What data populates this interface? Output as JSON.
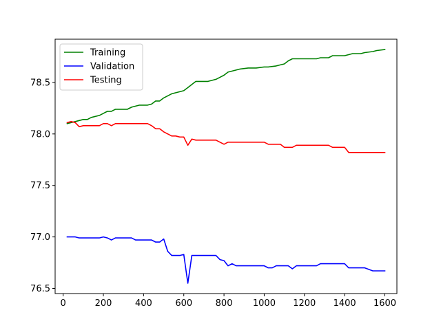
{
  "chart_data": {
    "type": "line",
    "title": "",
    "xlabel": "",
    "ylabel": "",
    "xlim": [
      -40,
      1660
    ],
    "ylim": [
      76.45,
      78.92
    ],
    "xticks": [
      0,
      200,
      400,
      600,
      800,
      1000,
      1200,
      1400,
      1600
    ],
    "yticks": [
      76.5,
      77.0,
      77.5,
      78.0,
      78.5
    ],
    "ytick_labels": [
      "76.5",
      "77.0",
      "77.5",
      "78.0",
      "78.5"
    ],
    "grid": false,
    "legend": {
      "placement": "top-left",
      "entries": [
        "Training",
        "Validation",
        "Testing"
      ]
    },
    "series": [
      {
        "name": "Training",
        "color": "#008000",
        "points": [
          [
            20,
            78.1
          ],
          [
            60,
            78.12
          ],
          [
            80,
            78.13
          ],
          [
            100,
            78.14
          ],
          [
            120,
            78.14
          ],
          [
            140,
            78.16
          ],
          [
            180,
            78.18
          ],
          [
            200,
            78.2
          ],
          [
            220,
            78.22
          ],
          [
            240,
            78.22
          ],
          [
            260,
            78.24
          ],
          [
            320,
            78.24
          ],
          [
            340,
            78.26
          ],
          [
            360,
            78.27
          ],
          [
            380,
            78.28
          ],
          [
            420,
            78.28
          ],
          [
            440,
            78.29
          ],
          [
            460,
            78.32
          ],
          [
            480,
            78.32
          ],
          [
            500,
            78.35
          ],
          [
            520,
            78.37
          ],
          [
            540,
            78.39
          ],
          [
            560,
            78.4
          ],
          [
            580,
            78.41
          ],
          [
            600,
            78.42
          ],
          [
            620,
            78.45
          ],
          [
            640,
            78.48
          ],
          [
            660,
            78.51
          ],
          [
            700,
            78.51
          ],
          [
            720,
            78.51
          ],
          [
            740,
            78.52
          ],
          [
            760,
            78.53
          ],
          [
            780,
            78.55
          ],
          [
            800,
            78.57
          ],
          [
            820,
            78.6
          ],
          [
            840,
            78.61
          ],
          [
            860,
            78.62
          ],
          [
            880,
            78.63
          ],
          [
            920,
            78.64
          ],
          [
            960,
            78.64
          ],
          [
            1000,
            78.65
          ],
          [
            1020,
            78.65
          ],
          [
            1060,
            78.66
          ],
          [
            1080,
            78.67
          ],
          [
            1100,
            78.68
          ],
          [
            1120,
            78.71
          ],
          [
            1140,
            78.73
          ],
          [
            1160,
            78.73
          ],
          [
            1260,
            78.73
          ],
          [
            1280,
            78.74
          ],
          [
            1320,
            78.74
          ],
          [
            1340,
            78.76
          ],
          [
            1400,
            78.76
          ],
          [
            1420,
            78.77
          ],
          [
            1440,
            78.78
          ],
          [
            1480,
            78.78
          ],
          [
            1500,
            78.79
          ],
          [
            1540,
            78.8
          ],
          [
            1560,
            78.81
          ],
          [
            1600,
            78.82
          ]
        ]
      },
      {
        "name": "Validation",
        "color": "#0000ff",
        "points": [
          [
            20,
            77.0
          ],
          [
            60,
            77.0
          ],
          [
            80,
            76.99
          ],
          [
            180,
            76.99
          ],
          [
            200,
            77.0
          ],
          [
            220,
            76.99
          ],
          [
            240,
            76.97
          ],
          [
            260,
            76.99
          ],
          [
            340,
            76.99
          ],
          [
            360,
            76.97
          ],
          [
            440,
            76.97
          ],
          [
            460,
            76.95
          ],
          [
            480,
            76.95
          ],
          [
            500,
            76.98
          ],
          [
            520,
            76.86
          ],
          [
            540,
            76.82
          ],
          [
            580,
            76.82
          ],
          [
            600,
            76.83
          ],
          [
            620,
            76.55
          ],
          [
            640,
            76.82
          ],
          [
            760,
            76.82
          ],
          [
            780,
            76.78
          ],
          [
            800,
            76.77
          ],
          [
            820,
            76.72
          ],
          [
            840,
            76.74
          ],
          [
            860,
            76.72
          ],
          [
            1000,
            76.72
          ],
          [
            1020,
            76.7
          ],
          [
            1040,
            76.7
          ],
          [
            1060,
            76.72
          ],
          [
            1120,
            76.72
          ],
          [
            1140,
            76.69
          ],
          [
            1160,
            76.72
          ],
          [
            1260,
            76.72
          ],
          [
            1280,
            76.74
          ],
          [
            1400,
            76.74
          ],
          [
            1420,
            76.7
          ],
          [
            1500,
            76.7
          ],
          [
            1540,
            76.67
          ],
          [
            1600,
            76.67
          ]
        ]
      },
      {
        "name": "Testing",
        "color": "#ff0000",
        "points": [
          [
            20,
            78.11
          ],
          [
            40,
            78.12
          ],
          [
            60,
            78.11
          ],
          [
            80,
            78.07
          ],
          [
            100,
            78.08
          ],
          [
            180,
            78.08
          ],
          [
            200,
            78.1
          ],
          [
            220,
            78.1
          ],
          [
            240,
            78.08
          ],
          [
            260,
            78.1
          ],
          [
            420,
            78.1
          ],
          [
            440,
            78.08
          ],
          [
            460,
            78.05
          ],
          [
            480,
            78.05
          ],
          [
            500,
            78.02
          ],
          [
            520,
            78.0
          ],
          [
            540,
            77.98
          ],
          [
            560,
            77.98
          ],
          [
            580,
            77.97
          ],
          [
            600,
            77.97
          ],
          [
            620,
            77.89
          ],
          [
            640,
            77.95
          ],
          [
            660,
            77.94
          ],
          [
            760,
            77.94
          ],
          [
            780,
            77.92
          ],
          [
            800,
            77.9
          ],
          [
            820,
            77.92
          ],
          [
            1000,
            77.92
          ],
          [
            1020,
            77.9
          ],
          [
            1080,
            77.9
          ],
          [
            1100,
            77.87
          ],
          [
            1140,
            77.87
          ],
          [
            1160,
            77.89
          ],
          [
            1320,
            77.89
          ],
          [
            1340,
            77.87
          ],
          [
            1400,
            77.87
          ],
          [
            1420,
            77.82
          ],
          [
            1600,
            77.82
          ]
        ]
      }
    ]
  }
}
